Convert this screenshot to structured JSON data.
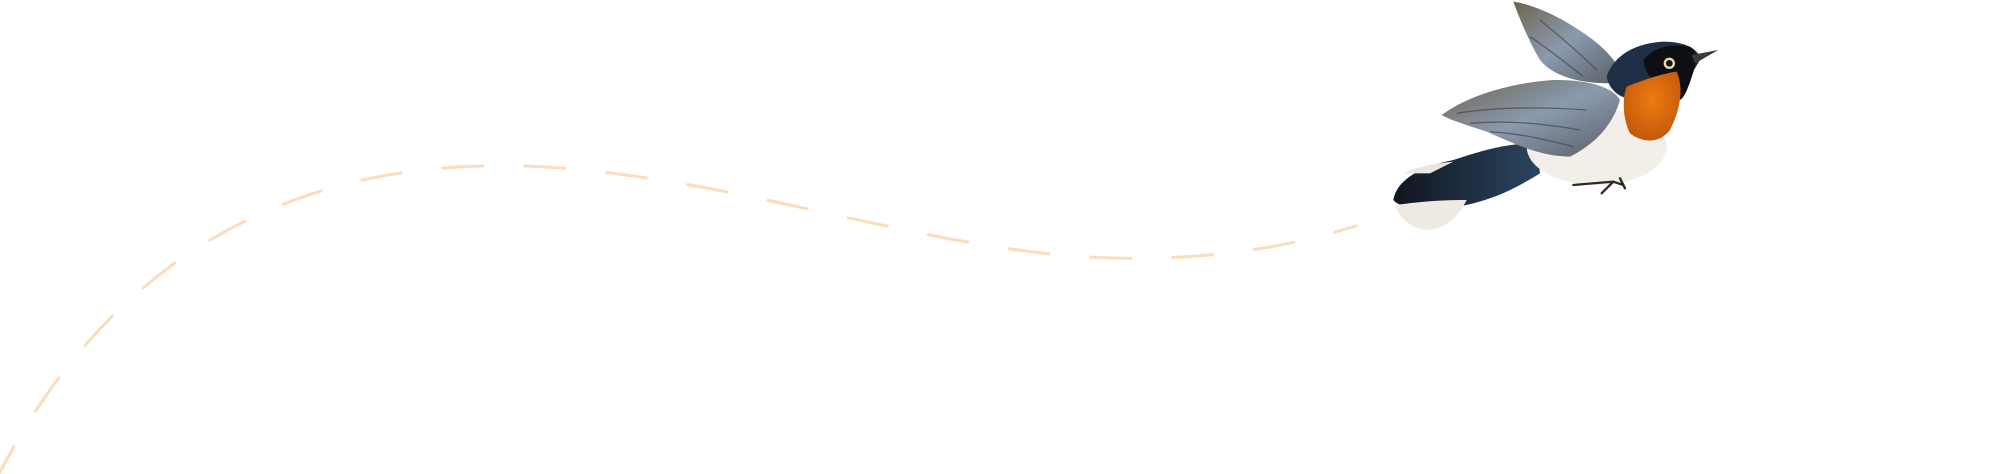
{
  "illustration": {
    "subject": "bird-in-flight",
    "colors": {
      "background": "#ffffff",
      "flight_path": "#fcdcbc",
      "throat": "#e3700f",
      "head": "#1f2f45",
      "wing": "#7d8590",
      "belly": "#f1efe8",
      "tail": "#1a2433"
    },
    "flight_path_style": "dashed"
  }
}
